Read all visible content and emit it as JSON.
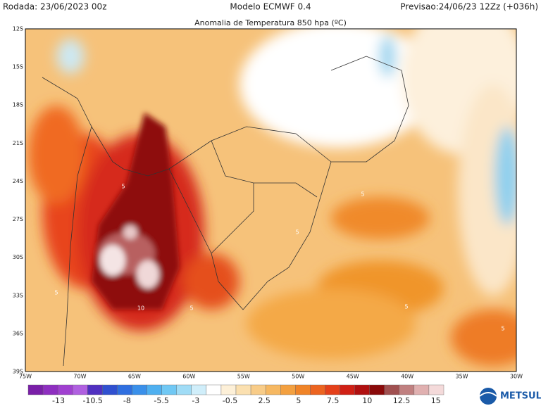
{
  "header": {
    "run": "Rodada: 23/06/2023 00z",
    "model": "Modelo ECMWF 0.4",
    "forecast": "Previsao:24/06/23 12Zz (+036h)"
  },
  "title": "Anomalia de Temperatura 850 hpa (ºC)",
  "map": {
    "lat_labels": [
      "12S",
      "15S",
      "18S",
      "21S",
      "24S",
      "27S",
      "30S",
      "33S",
      "36S",
      "39S"
    ],
    "lon_labels": [
      "75W",
      "70W",
      "65W",
      "60W",
      "55W",
      "50W",
      "45W",
      "40W",
      "35W",
      "30W"
    ],
    "contour_labels": [
      5,
      5,
      5,
      5,
      10,
      5,
      5,
      5
    ]
  },
  "colorbar": {
    "ticks": [
      -13,
      -10.5,
      -8,
      -5.5,
      -3,
      -0.5,
      2.5,
      5,
      7.5,
      10,
      12.5,
      15
    ]
  },
  "logo": "METSUL"
}
